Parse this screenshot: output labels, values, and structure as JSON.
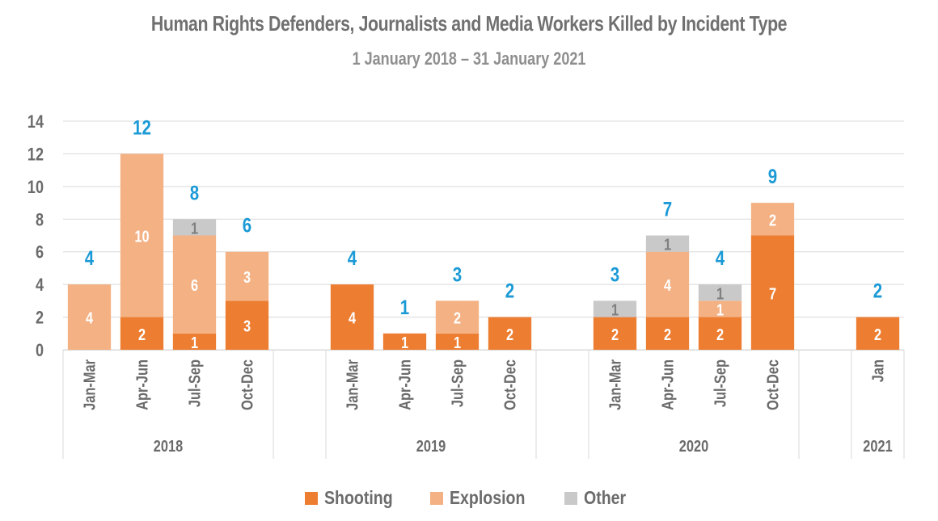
{
  "chart_data": {
    "type": "bar",
    "stacked": true,
    "title": "Human Rights Defenders, Journalists and Media Workers Killed by Incident Type",
    "subtitle": "1 January 2018 – 31 January 2021",
    "xlabel": "",
    "ylabel": "",
    "ylim": [
      0,
      14
    ],
    "yticks": [
      0,
      2,
      4,
      6,
      8,
      10,
      12,
      14
    ],
    "grid": true,
    "legend_position": "bottom",
    "groups": [
      {
        "label": "2018",
        "categories": [
          "Jan-Mar",
          "Apr-Jun",
          "Jul-Sep",
          "Oct-Dec"
        ]
      },
      {
        "label": "2019",
        "categories": [
          "Jan-Mar",
          "Apr-Jun",
          "Jul-Sep",
          "Oct-Dec"
        ]
      },
      {
        "label": "2020",
        "categories": [
          "Jan-Mar",
          "Apr-Jun",
          "Jul-Sep",
          "Oct-Dec"
        ]
      },
      {
        "label": "2021",
        "categories": [
          "Jan"
        ]
      }
    ],
    "categories": [
      "2018 Jan-Mar",
      "2018 Apr-Jun",
      "2018 Jul-Sep",
      "2018 Oct-Dec",
      "2019 Jan-Mar",
      "2019 Apr-Jun",
      "2019 Jul-Sep",
      "2019 Oct-Dec",
      "2020 Jan-Mar",
      "2020 Apr-Jun",
      "2020 Jul-Sep",
      "2020 Oct-Dec",
      "2021 Jan"
    ],
    "series": [
      {
        "name": "Shooting",
        "color": "#ed7d31",
        "values": [
          0,
          2,
          1,
          3,
          4,
          1,
          1,
          2,
          2,
          2,
          2,
          7,
          2
        ]
      },
      {
        "name": "Explosion",
        "color": "#f4b183",
        "values": [
          4,
          10,
          6,
          3,
          0,
          0,
          2,
          0,
          0,
          4,
          1,
          2,
          0
        ]
      },
      {
        "name": "Other",
        "color": "#c9c9c9",
        "values": [
          0,
          0,
          1,
          0,
          0,
          0,
          0,
          0,
          1,
          1,
          1,
          0,
          0
        ]
      }
    ],
    "totals": [
      4,
      12,
      8,
      6,
      4,
      1,
      3,
      2,
      3,
      7,
      4,
      9,
      2
    ],
    "total_label_color": "#1b9ad6"
  },
  "legend": [
    {
      "name": "Shooting",
      "color": "#ed7d31"
    },
    {
      "name": "Explosion",
      "color": "#f4b183"
    },
    {
      "name": "Other",
      "color": "#c9c9c9"
    }
  ]
}
